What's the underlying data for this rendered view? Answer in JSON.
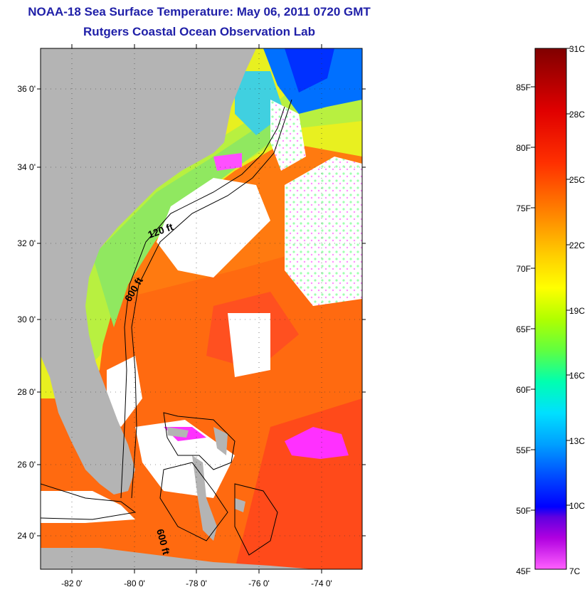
{
  "header": {
    "title": "NOAA-18 Sea Surface Temperature:  May 06, 2011 0720 GMT",
    "subtitle": "Rutgers Coastal Ocean Observation Lab"
  },
  "map": {
    "lat_labels": [
      "36 0'",
      "34 0'",
      "32 0'",
      "30 0'",
      "28 0'",
      "26 0'",
      "24 0'"
    ],
    "lon_labels": [
      "-82 0'",
      "-80 0'",
      "-78 0'",
      "-76 0'",
      "-74 0'"
    ],
    "isobaths": [
      "120 ft",
      "600 ft",
      "600 ft"
    ],
    "land_color": "#b4b4b4",
    "cloud_color": "#ffffff"
  },
  "colorbar": {
    "fahrenheit": [
      "85F",
      "80F",
      "75F",
      "70F",
      "65F",
      "60F",
      "55F",
      "50F",
      "45F"
    ],
    "celsius": [
      "31C",
      "28C",
      "25C",
      "22C",
      "19C",
      "16C",
      "13C",
      "10C",
      "7C"
    ],
    "colors_top_to_bottom": [
      "#800000",
      "#ff0000",
      "#ff8000",
      "#ffff00",
      "#80ff00",
      "#00ffff",
      "#0080ff",
      "#0000ff",
      "#8000ff",
      "#ff00ff",
      "#ff80ff"
    ]
  }
}
